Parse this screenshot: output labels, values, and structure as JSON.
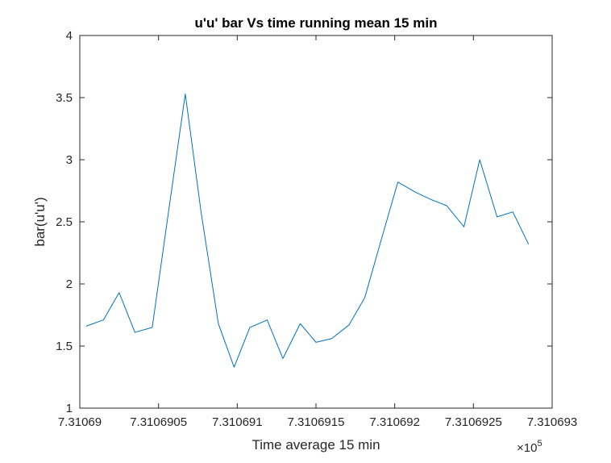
{
  "chart_data": {
    "type": "line",
    "title": "u'u' bar Vs time running mean 15 min",
    "xlabel": "Time average 15 min",
    "ylabel": "bar(u'u')",
    "x_exponent_label": "×10",
    "x_exponent_power": "5",
    "xlim": [
      7.31069,
      7.310693
    ],
    "ylim": [
      1,
      4
    ],
    "x_ticks": [
      7.31069,
      7.3106905,
      7.310691,
      7.3106915,
      7.310692,
      7.3106925,
      7.310693
    ],
    "x_tick_labels": [
      "7.31069",
      "7.3106905",
      "7.310691",
      "7.3106915",
      "7.310692",
      "7.3106925",
      "7.310693"
    ],
    "y_ticks": [
      1,
      1.5,
      2,
      2.5,
      3,
      3.5,
      4
    ],
    "y_tick_labels": [
      "1",
      "1.5",
      "2",
      "2.5",
      "3",
      "3.5",
      "4"
    ],
    "grid": false,
    "color": "#0072BD",
    "series": [
      {
        "x": [
          7.31069004,
          7.31069015,
          7.31069025,
          7.31069035,
          7.31069046,
          7.31069056,
          7.31069067,
          7.31069077,
          7.31069088,
          7.31069098,
          7.31069108,
          7.31069119,
          7.31069129,
          7.3106914,
          7.3106915,
          7.3106916,
          7.31069171,
          7.31069181,
          7.31069192,
          7.31069202,
          7.31069213,
          7.31069223,
          7.31069233,
          7.31069244,
          7.31069254,
          7.31069265,
          7.31069275,
          7.31069285
        ],
        "y": [
          1.66,
          1.71,
          1.93,
          1.61,
          1.65,
          2.55,
          3.53,
          2.58,
          1.68,
          1.33,
          1.65,
          1.71,
          1.4,
          1.68,
          1.53,
          1.56,
          1.67,
          1.89,
          2.38,
          2.82,
          2.74,
          2.68,
          2.63,
          2.46,
          3.0,
          2.54,
          2.58,
          2.32
        ]
      }
    ]
  }
}
